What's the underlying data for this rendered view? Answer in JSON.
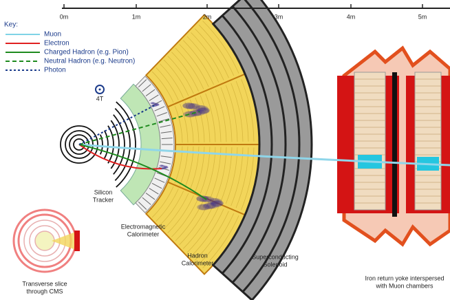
{
  "scale": {
    "labels": [
      "0m",
      "1m",
      "2m",
      "3m",
      "4m",
      "5m"
    ]
  },
  "key": {
    "title": "Key:",
    "items": [
      "Muon",
      "Electron",
      "Charged Hadron (e.g. Pion)",
      "Neutral Hadron (e.g. Neutron)",
      "Photon"
    ]
  },
  "field": "4T",
  "labels": {
    "tracker": [
      "Silicon",
      "Tracker"
    ],
    "ecal": [
      "Electromagnetic",
      "Calorimeter"
    ],
    "hcal": [
      "Hadron",
      "Calorimeter"
    ],
    "solenoid": [
      "Superconducting",
      "Solenoid"
    ],
    "yoke": [
      "Iron return yoke interspersed",
      "with Muon chambers"
    ],
    "slice": [
      "Transverse slice",
      "through CMS"
    ]
  }
}
